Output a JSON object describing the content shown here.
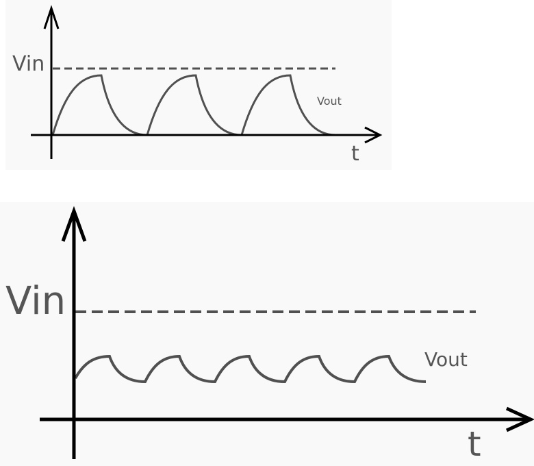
{
  "top_diagram": {
    "vin_label": "Vin",
    "vout_label": "Vout",
    "t_label": "t",
    "cycles": 3
  },
  "bottom_diagram": {
    "vin_label": "Vin",
    "vout_label": "Vout",
    "t_label": "t",
    "cycles": 5
  },
  "colors": {
    "panel_bg": "#f9f9f9",
    "axis": "#000000",
    "curve": "#505050",
    "dashed": "#505050"
  }
}
